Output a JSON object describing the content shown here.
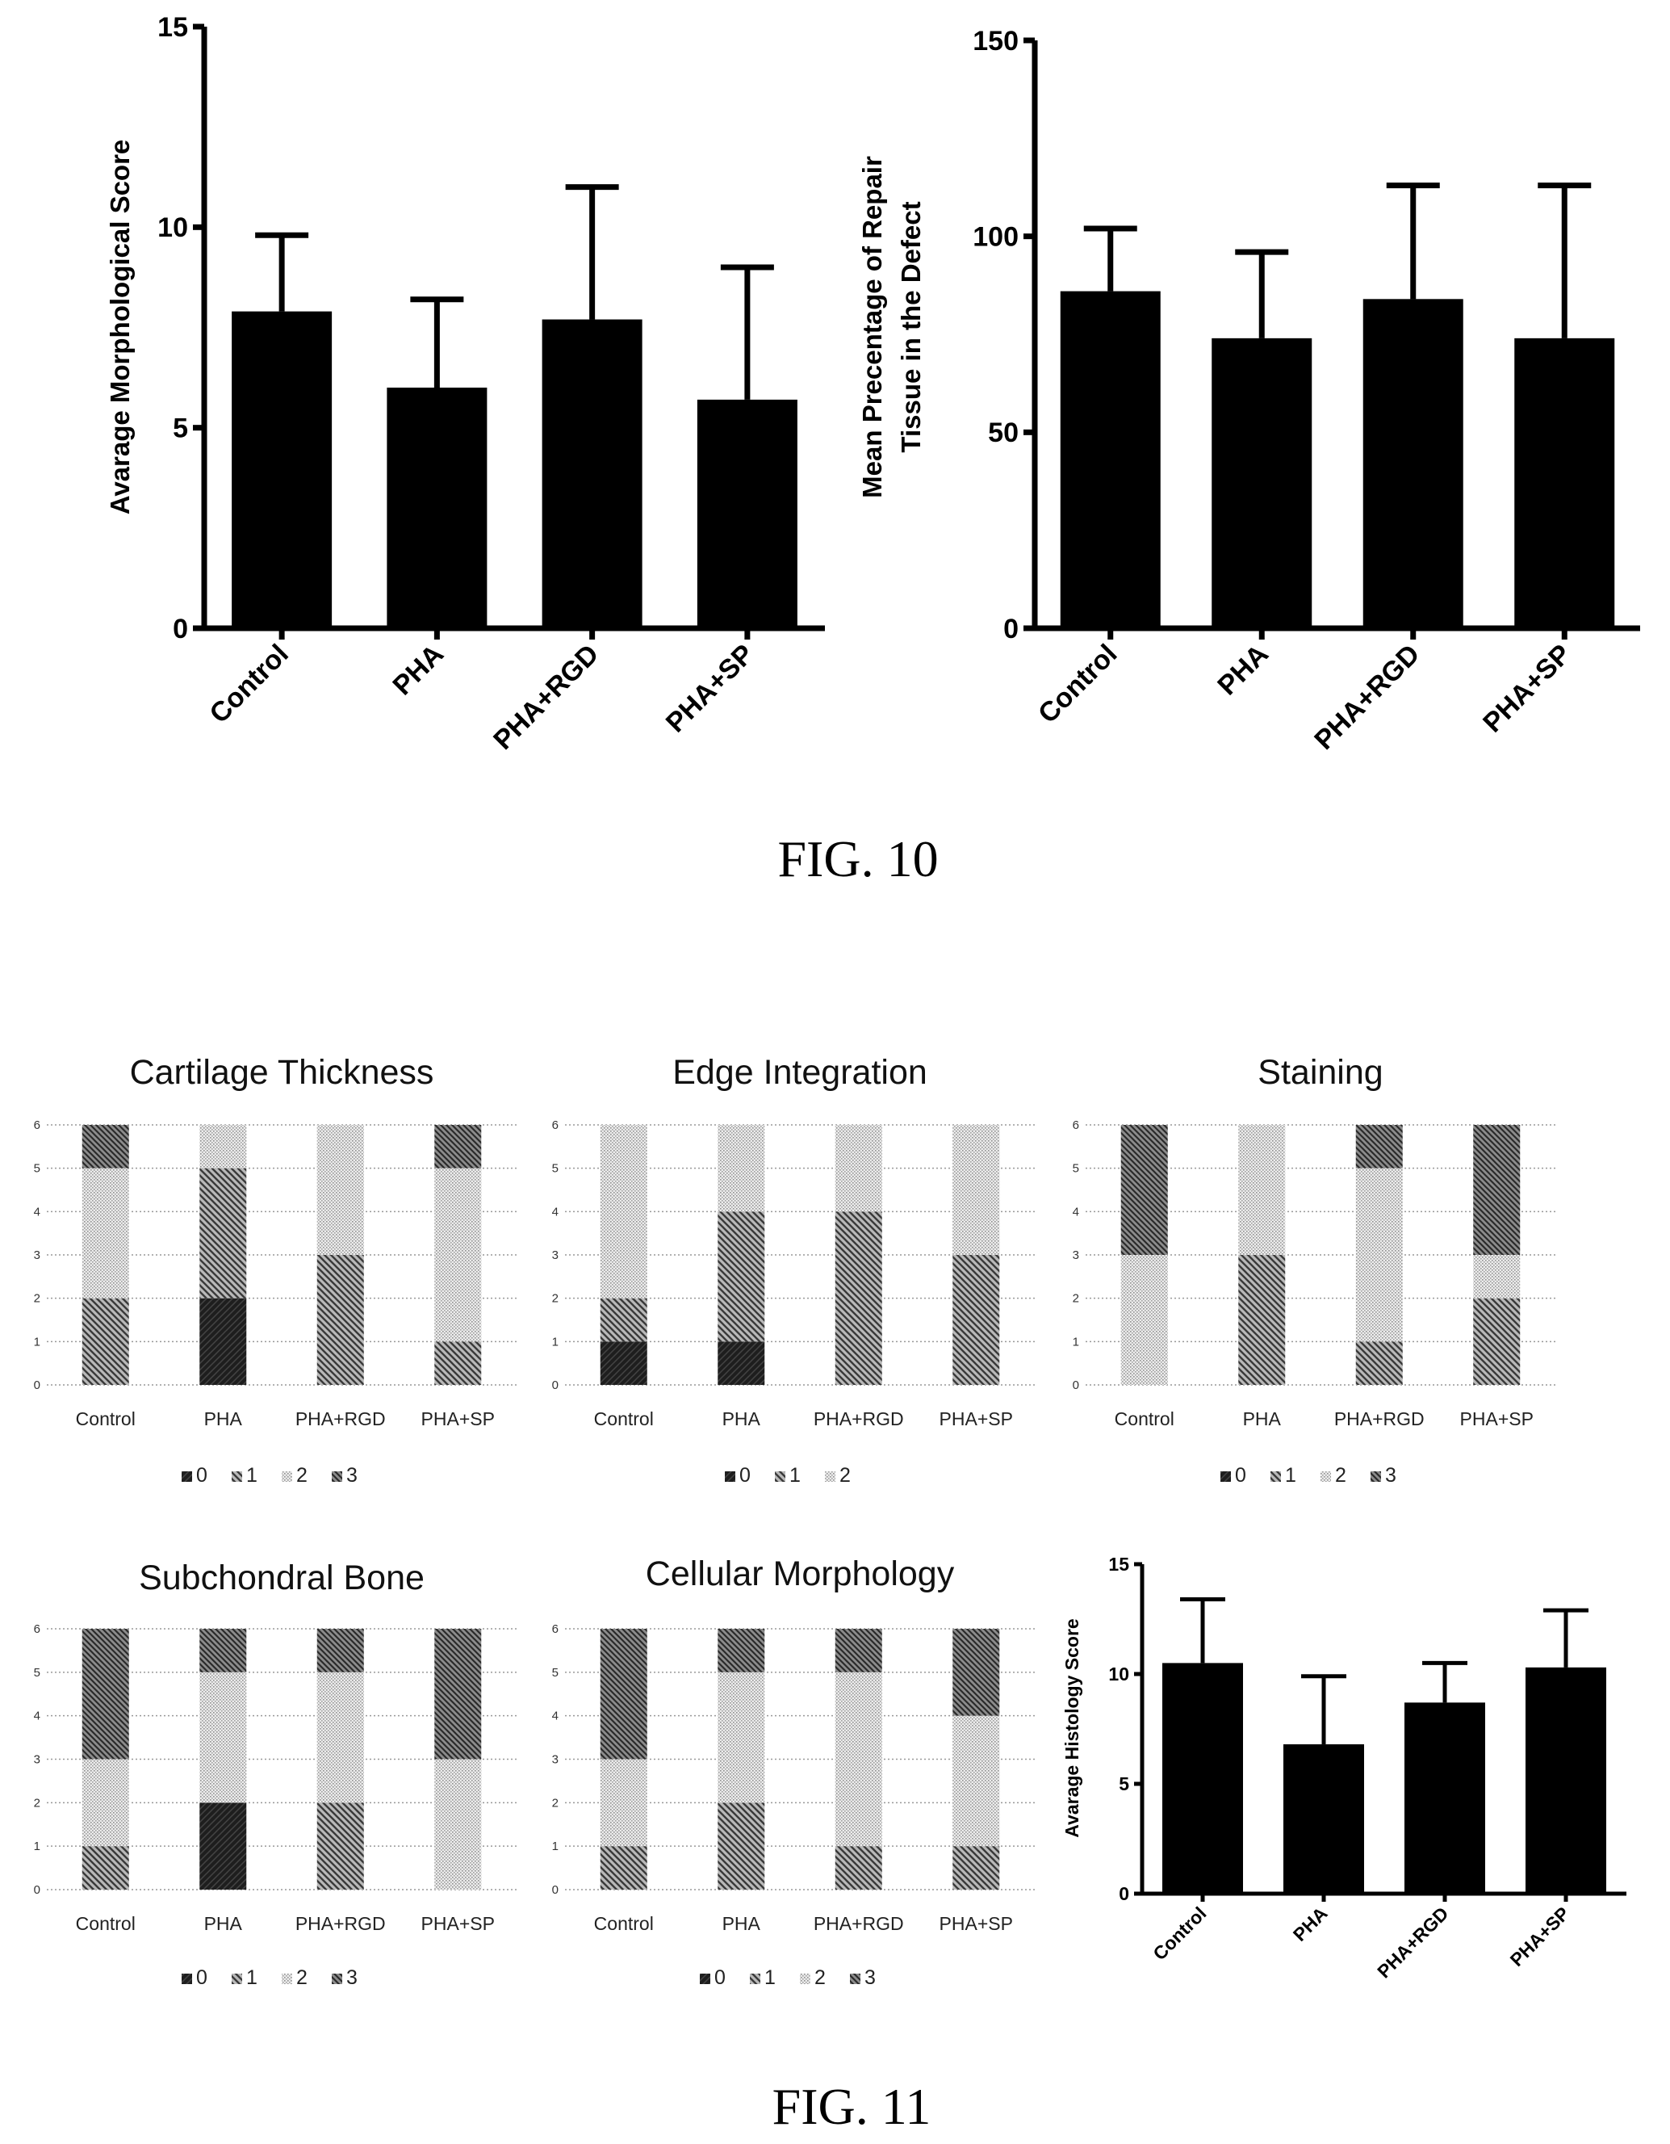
{
  "figures": [
    "FIG. 10",
    "FIG. 11"
  ],
  "colors": {
    "bar": "#000000",
    "grid": "#999999"
  },
  "chart_data": [
    {
      "type": "bar",
      "figure": "FIG. 10",
      "categories": [
        "Control",
        "PHA",
        "PHA+RGD",
        "PHA+SP"
      ],
      "values": [
        7.9,
        6.0,
        7.7,
        5.7
      ],
      "errors": [
        1.9,
        2.2,
        3.3,
        3.3
      ],
      "ylabel": "Avarage Morphological Score",
      "ylim": [
        0,
        15
      ],
      "yticks": [
        0,
        5,
        10,
        15
      ]
    },
    {
      "type": "bar",
      "figure": "FIG. 10",
      "categories": [
        "Control",
        "PHA",
        "PHA+RGD",
        "PHA+SP"
      ],
      "values": [
        86,
        74,
        84,
        74
      ],
      "errors": [
        16,
        22,
        29,
        39
      ],
      "ylabel": [
        "Mean Precentage of Repair",
        "Tissue in the Defect"
      ],
      "ylim": [
        0,
        150
      ],
      "yticks": [
        0,
        50,
        100,
        150
      ]
    },
    {
      "type": "bar",
      "stacked": true,
      "figure": "FIG. 11",
      "title": "Cartilage Thickness",
      "categories": [
        "Control",
        "PHA",
        "PHA+RGD",
        "PHA+SP"
      ],
      "legend": [
        "0",
        "1",
        "2",
        "3"
      ],
      "series_colors": [
        "#2b2b2b",
        "#666666",
        "#c8c8c8",
        "#8a8a8a"
      ],
      "series": [
        {
          "name": "0",
          "values": [
            0,
            2,
            0,
            0
          ]
        },
        {
          "name": "1",
          "values": [
            2,
            3,
            3,
            1
          ]
        },
        {
          "name": "2",
          "values": [
            3,
            1,
            3,
            4
          ]
        },
        {
          "name": "3",
          "values": [
            1,
            0,
            0,
            1
          ]
        }
      ],
      "ylim": [
        0,
        6
      ],
      "yticks": [
        "0",
        "1",
        "2",
        "3",
        "4",
        "5",
        "6"
      ],
      "grid": true
    },
    {
      "type": "bar",
      "stacked": true,
      "figure": "FIG. 11",
      "title": "Edge Integration",
      "categories": [
        "Control",
        "PHA",
        "PHA+RGD",
        "PHA+SP"
      ],
      "legend": [
        "0",
        "1",
        "2"
      ],
      "series_colors": [
        "#2b2b2b",
        "#666666",
        "#c8c8c8"
      ],
      "series": [
        {
          "name": "0",
          "values": [
            1,
            1,
            0,
            0
          ]
        },
        {
          "name": "1",
          "values": [
            1,
            3,
            4,
            3
          ]
        },
        {
          "name": "2",
          "values": [
            4,
            2,
            2,
            3
          ]
        }
      ],
      "ylim": [
        0,
        6
      ],
      "yticks": [
        "0",
        "1",
        "2",
        "3",
        "4",
        "5",
        "6"
      ],
      "grid": true
    },
    {
      "type": "bar",
      "stacked": true,
      "figure": "FIG. 11",
      "title": "Staining",
      "categories": [
        "Control",
        "PHA",
        "PHA+RGD",
        "PHA+SP"
      ],
      "legend": [
        "0",
        "1",
        "2",
        "3"
      ],
      "series_colors": [
        "#2b2b2b",
        "#666666",
        "#c8c8c8",
        "#8a8a8a"
      ],
      "series": [
        {
          "name": "0",
          "values": [
            0,
            0,
            0,
            0
          ]
        },
        {
          "name": "1",
          "values": [
            0,
            3,
            1,
            2
          ]
        },
        {
          "name": "2",
          "values": [
            3,
            3,
            4,
            1
          ]
        },
        {
          "name": "3",
          "values": [
            3,
            0,
            1,
            3
          ]
        }
      ],
      "ylim": [
        0,
        6
      ],
      "yticks": [
        "0",
        "1",
        "2",
        "3",
        "4",
        "5",
        "6"
      ],
      "grid": true
    },
    {
      "type": "bar",
      "stacked": true,
      "figure": "FIG. 11",
      "title": "Subchondral Bone",
      "categories": [
        "Control",
        "PHA",
        "PHA+RGD",
        "PHA+SP"
      ],
      "legend": [
        "0",
        "1",
        "2",
        "3"
      ],
      "series_colors": [
        "#2b2b2b",
        "#666666",
        "#c8c8c8",
        "#8a8a8a"
      ],
      "series": [
        {
          "name": "0",
          "values": [
            0,
            2,
            0,
            0
          ]
        },
        {
          "name": "1",
          "values": [
            1,
            0,
            2,
            0
          ]
        },
        {
          "name": "2",
          "values": [
            2,
            3,
            3,
            3
          ]
        },
        {
          "name": "3",
          "values": [
            3,
            1,
            1,
            3
          ]
        }
      ],
      "ylim": [
        0,
        6
      ],
      "yticks": [
        "0",
        "1",
        "2",
        "3",
        "4",
        "5",
        "6"
      ],
      "grid": true
    },
    {
      "type": "bar",
      "stacked": true,
      "figure": "FIG. 11",
      "title": "Cellular Morphology",
      "categories": [
        "Control",
        "PHA",
        "PHA+RGD",
        "PHA+SP"
      ],
      "legend": [
        "0",
        "1",
        "2",
        "3"
      ],
      "series_colors": [
        "#2b2b2b",
        "#666666",
        "#c8c8c8",
        "#8a8a8a"
      ],
      "series": [
        {
          "name": "0",
          "values": [
            0,
            0,
            0,
            0
          ]
        },
        {
          "name": "1",
          "values": [
            1,
            2,
            1,
            1
          ]
        },
        {
          "name": "2",
          "values": [
            2,
            3,
            4,
            3
          ]
        },
        {
          "name": "3",
          "values": [
            3,
            1,
            1,
            2
          ]
        }
      ],
      "ylim": [
        0,
        6
      ],
      "yticks": [
        "0",
        "1",
        "2",
        "3",
        "4",
        "5",
        "6"
      ],
      "grid": true
    },
    {
      "type": "bar",
      "figure": "FIG. 11",
      "categories": [
        "Control",
        "PHA",
        "PHA+RGD",
        "PHA+SP"
      ],
      "values": [
        10.5,
        6.8,
        8.7,
        10.3
      ],
      "errors": [
        2.9,
        3.1,
        1.8,
        2.6
      ],
      "ylabel": "Avarage Histology Score",
      "ylim": [
        0,
        15
      ],
      "yticks": [
        0,
        5,
        10,
        15
      ]
    }
  ]
}
